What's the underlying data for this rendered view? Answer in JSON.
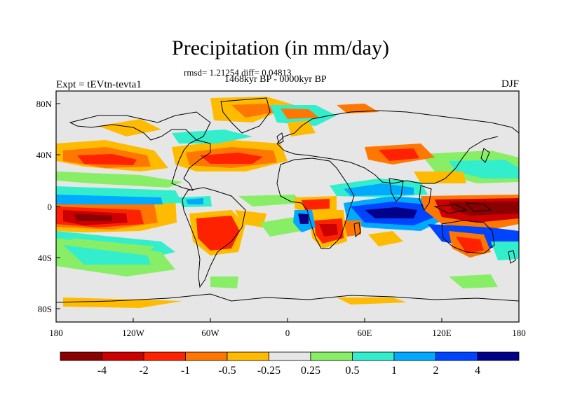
{
  "title": "Precipitation (in mm/day)",
  "stats_line": "rmsd= 1.21254 diff= 0.04813",
  "period_line": "1468kyr BP - 0000kyr BP",
  "experiment_label": "Expt = tEVtn-tevta1",
  "season": "DJF",
  "lat_ticks": [
    "80N",
    "40N",
    "0",
    "40S",
    "80S"
  ],
  "lon_ticks": [
    "180",
    "120W",
    "60W",
    "0",
    "60E",
    "120E",
    "180"
  ],
  "colorbar": {
    "labels": [
      "-4",
      "-2",
      "-1",
      "-0.5",
      "-0.25",
      "0.25",
      "0.5",
      "1",
      "2",
      "4"
    ],
    "colors": [
      "#8b0000",
      "#cc0000",
      "#ff2200",
      "#ff7700",
      "#ffbb00",
      "#e6e6e6",
      "#88ee66",
      "#33eecc",
      "#00aaff",
      "#0044ff",
      "#000088"
    ]
  },
  "map_colors": {
    "ocean_bg": "#e6e6e6",
    "coast": "#000000"
  }
}
